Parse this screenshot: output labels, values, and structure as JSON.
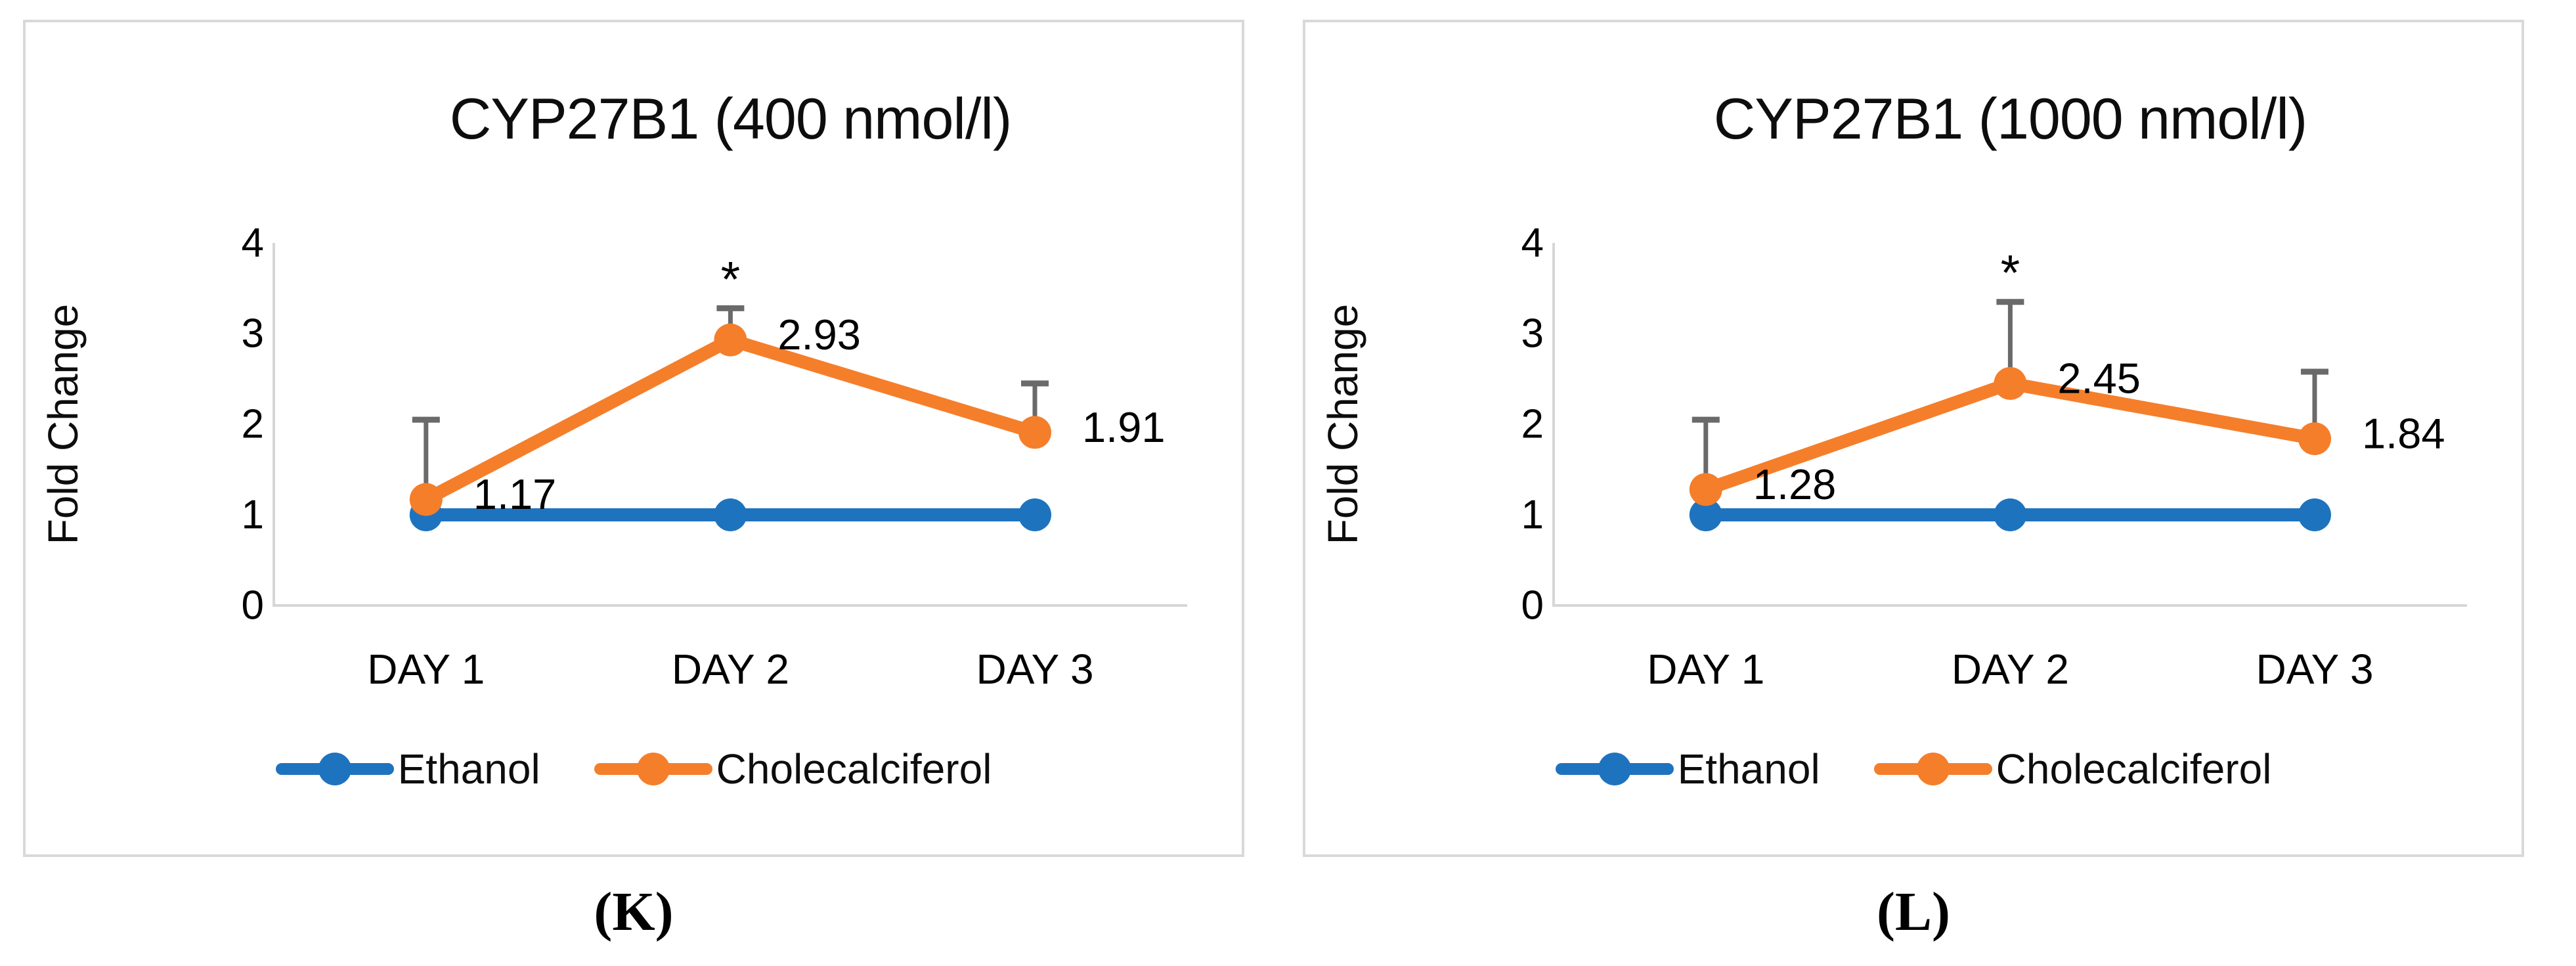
{
  "colors": {
    "ethanol": "#1E73BE",
    "cholecalciferol": "#F57E2B",
    "error_bar": "#6A6A6A",
    "axis_line": "#D6D6D6",
    "panel_border": "#D9D9D9",
    "text": "#000000"
  },
  "legend": {
    "items": [
      {
        "label": "Ethanol",
        "color_key": "ethanol"
      },
      {
        "label": "Cholecalciferol",
        "color_key": "cholecalciferol"
      }
    ]
  },
  "chart_data": [
    {
      "type": "line",
      "title": "CYP27B1 (400 nmol/l)",
      "caption": "(K)",
      "xlabel": "",
      "ylabel": "Fold Change",
      "categories": [
        "DAY 1",
        "DAY 2",
        "DAY 3"
      ],
      "yticks": [
        0,
        1,
        2,
        3,
        4
      ],
      "ylim": [
        0,
        4
      ],
      "grid": false,
      "legend_position": "bottom",
      "series": [
        {
          "name": "Ethanol",
          "color_key": "ethanol",
          "values": [
            1,
            1,
            1
          ]
        },
        {
          "name": "Cholecalciferol",
          "color_key": "cholecalciferol",
          "values": [
            1.17,
            2.93,
            1.91
          ],
          "data_labels": [
            "1.17",
            "2.93",
            "1.91"
          ],
          "error_upper": [
            0.88,
            0.35,
            0.54
          ],
          "significance": [
            "",
            "*",
            ""
          ]
        }
      ]
    },
    {
      "type": "line",
      "title": "CYP27B1 (1000 nmol/l)",
      "caption": "(L)",
      "xlabel": "",
      "ylabel": "Fold Change",
      "categories": [
        "DAY 1",
        "DAY 2",
        "DAY 3"
      ],
      "yticks": [
        0,
        1,
        2,
        3,
        4
      ],
      "ylim": [
        0,
        4
      ],
      "grid": false,
      "legend_position": "bottom",
      "series": [
        {
          "name": "Ethanol",
          "color_key": "ethanol",
          "values": [
            1,
            1,
            1
          ]
        },
        {
          "name": "Cholecalciferol",
          "color_key": "cholecalciferol",
          "values": [
            1.28,
            2.45,
            1.84
          ],
          "data_labels": [
            "1.28",
            "2.45",
            "1.84"
          ],
          "error_upper": [
            0.77,
            0.9,
            0.74
          ],
          "significance": [
            "",
            "*",
            ""
          ]
        }
      ]
    }
  ]
}
